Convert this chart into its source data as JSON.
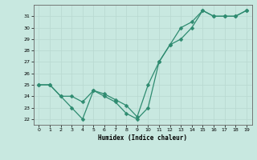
{
  "xlabel": "Humidex (Indice chaleur)",
  "line_color": "#2e8b70",
  "bg_color": "#c8e8e0",
  "grid_color": "#b8d8d0",
  "ylim": [
    21.5,
    32
  ],
  "xlim": [
    -0.5,
    19.5
  ],
  "yticks": [
    22,
    23,
    24,
    25,
    26,
    27,
    28,
    29,
    30,
    31
  ],
  "xticks": [
    0,
    1,
    2,
    3,
    4,
    5,
    6,
    7,
    8,
    9,
    10,
    11,
    12,
    13,
    14,
    15,
    16,
    17,
    18,
    19
  ],
  "xs1": [
    0,
    1,
    2,
    3,
    4,
    5,
    6,
    7,
    8,
    9,
    10,
    11,
    12,
    13,
    14,
    15,
    16,
    17,
    18,
    19
  ],
  "ys1": [
    25,
    25,
    24,
    23,
    22,
    24.5,
    24,
    23.5,
    22.5,
    22,
    23,
    27,
    28.5,
    30,
    30.5,
    31.5,
    31,
    31,
    31,
    31.5
  ],
  "xs2": [
    0,
    1,
    2,
    3,
    4,
    5,
    6,
    7,
    8,
    9,
    10,
    11,
    12,
    13,
    14,
    15,
    16,
    17,
    18,
    19
  ],
  "ys2": [
    25,
    25,
    24,
    24,
    23.5,
    24.5,
    24.2,
    23.7,
    23.2,
    22.2,
    25,
    27,
    28.5,
    29,
    30,
    31.5,
    31,
    31,
    31,
    31.5
  ],
  "markersize": 2.5,
  "linewidth": 0.9
}
